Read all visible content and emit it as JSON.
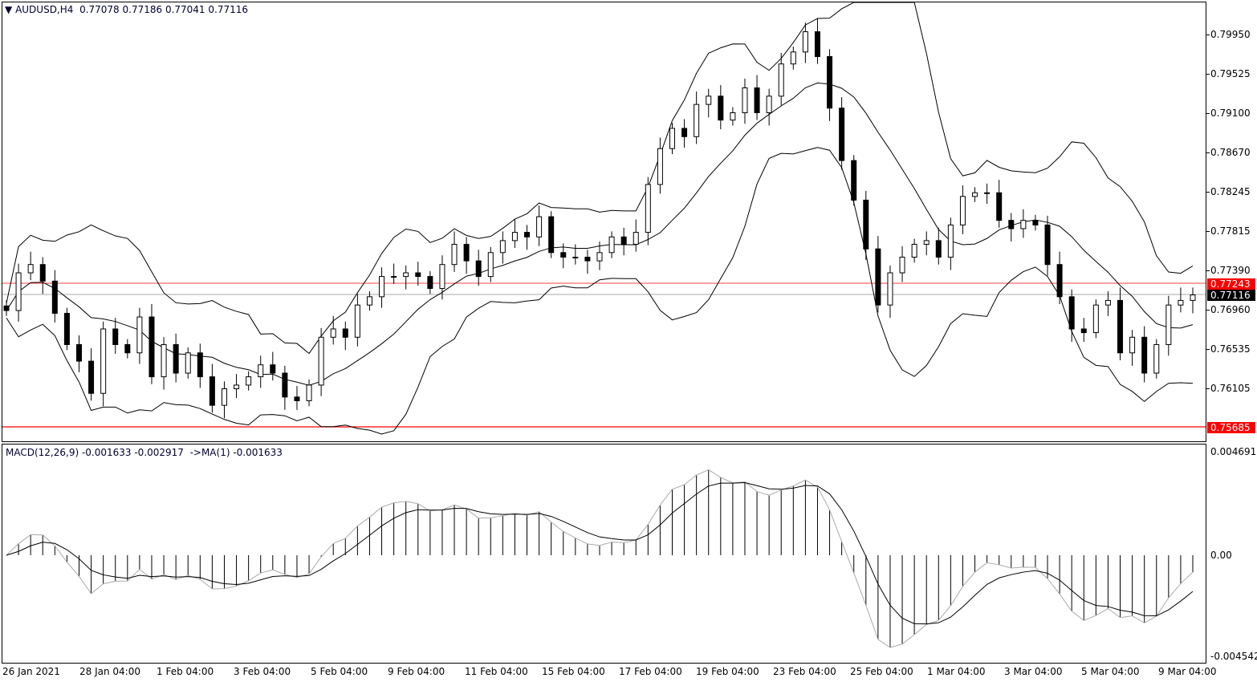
{
  "header": {
    "symbol": "AUDUSD,H4",
    "ohlc": "0.77078 0.77186 0.77041 0.77116"
  },
  "macd_header": "MACD(12,26,9) -0.001633 -0.002917  ->MA(1) -0.001633",
  "colors": {
    "up": "#ffffff",
    "down": "#000000",
    "bid_line": "#ff0000",
    "last_tag": "#000000",
    "support_line": "#ff0000"
  },
  "price_axis": [
    "0.79950",
    "0.79525",
    "0.79100",
    "0.78670",
    "0.78245",
    "0.77815",
    "0.77390",
    "0.76960",
    "0.76535",
    "0.76105"
  ],
  "tags": {
    "ask": "0.77243",
    "bid": "0.77116",
    "level": "0.75685"
  },
  "macd_axis": {
    "top": "0.004691",
    "zero": "0.00",
    "bottom": "-0.004542"
  },
  "time_axis": [
    "26 Jan 2021",
    "28 Jan 04:00",
    "1 Feb 04:00",
    "3 Feb 04:00",
    "5 Feb 04:00",
    "9 Feb 04:00",
    "11 Feb 04:00",
    "15 Feb 04:00",
    "17 Feb 04:00",
    "19 Feb 04:00",
    "23 Feb 04:00",
    "25 Feb 04:00",
    "1 Mar 04:00",
    "3 Mar 04:00",
    "5 Mar 04:00",
    "9 Mar 04:00"
  ],
  "chart_data": {
    "type": "candlestick",
    "indicators": [
      "Bollinger Bands(20,2)",
      "MACD(12,26,9)"
    ],
    "ylim": [
      0.756,
      0.802
    ],
    "closes": [
      0.7695,
      0.7736,
      0.7745,
      0.7727,
      0.7692,
      0.7658,
      0.764,
      0.7605,
      0.7675,
      0.7658,
      0.7649,
      0.7688,
      0.7623,
      0.7658,
      0.7627,
      0.7649,
      0.7623,
      0.7592,
      0.761,
      0.7614,
      0.7623,
      0.7636,
      0.7627,
      0.7601,
      0.7597,
      0.7614,
      0.7666,
      0.7675,
      0.7666,
      0.7701,
      0.771,
      0.7732,
      0.7732,
      0.7736,
      0.7732,
      0.7719,
      0.7745,
      0.7767,
      0.7749,
      0.7732,
      0.7758,
      0.7771,
      0.778,
      0.7775,
      0.7797,
      0.7758,
      0.7753,
      0.7753,
      0.7749,
      0.7758,
      0.7775,
      0.7767,
      0.778,
      0.7832,
      0.7871,
      0.7893,
      0.7884,
      0.7919,
      0.7928,
      0.7902,
      0.791,
      0.7937,
      0.791,
      0.7928,
      0.7963,
      0.7976,
      0.7998,
      0.7971,
      0.7915,
      0.7858,
      0.7815,
      0.7762,
      0.7701,
      0.7736,
      0.7753,
      0.7767,
      0.7771,
      0.7753,
      0.7788,
      0.7819,
      0.7823,
      0.7823,
      0.7793,
      0.7784,
      0.7793,
      0.7788,
      0.7745,
      0.771,
      0.7675,
      0.7671,
      0.7701,
      0.7706,
      0.7649,
      0.7666,
      0.7627,
      0.7658,
      0.7701,
      0.7706,
      0.7712
    ]
  }
}
